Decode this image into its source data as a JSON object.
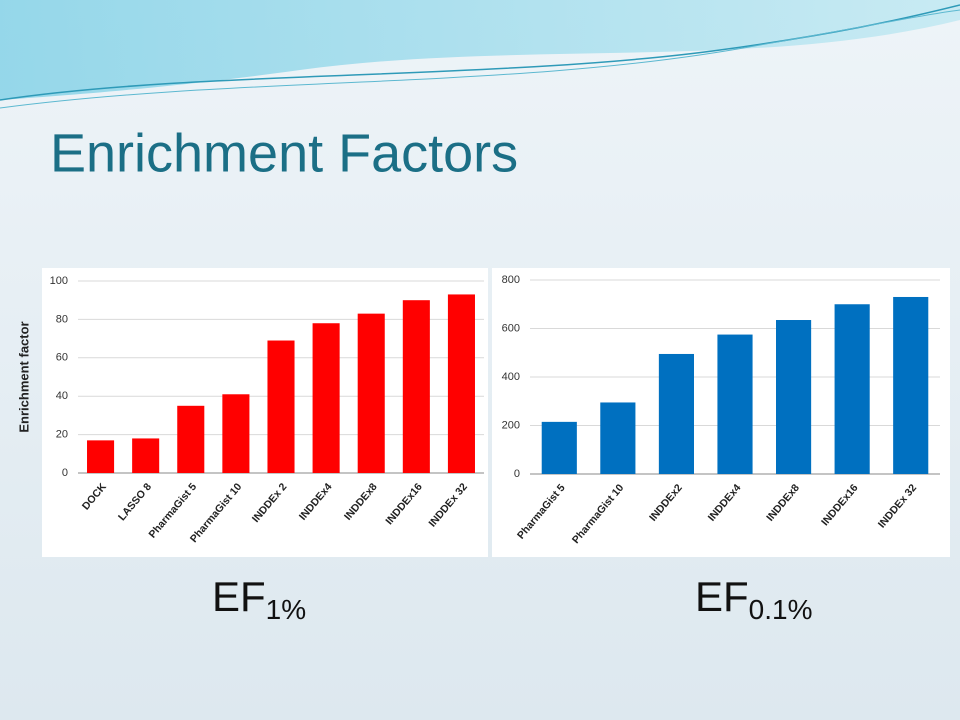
{
  "title": "Enrichment Factors",
  "chart_data": [
    {
      "type": "bar",
      "ylabel": "Enrichment factor",
      "caption": {
        "main": "EF",
        "sub": "1%"
      },
      "categories": [
        "DOCK",
        "LASSO 8",
        "PharmaGist 5",
        "PharmaGist 10",
        "INDDEx 2",
        "INDDEx4",
        "INDDEx8",
        "INDDEx16",
        "INDDEx 32"
      ],
      "values": [
        17,
        18,
        35,
        41,
        69,
        78,
        83,
        90,
        93
      ],
      "color": "#ff0000",
      "ylim": [
        0,
        100
      ],
      "yticks": [
        0,
        20,
        40,
        60,
        80,
        100
      ],
      "grid": true
    },
    {
      "type": "bar",
      "caption": {
        "main": "EF",
        "sub": "0.1%"
      },
      "categories": [
        "PharmaGist 5",
        "PharmaGist 10",
        "INDDEx2",
        "INDDEx4",
        "INDDEx8",
        "INDDEx16",
        "INDDEx 32"
      ],
      "values": [
        215,
        295,
        495,
        575,
        635,
        700,
        730
      ],
      "color": "#0070c0",
      "ylim": [
        0,
        800
      ],
      "yticks": [
        0,
        200,
        400,
        600,
        800
      ],
      "grid": true
    }
  ]
}
